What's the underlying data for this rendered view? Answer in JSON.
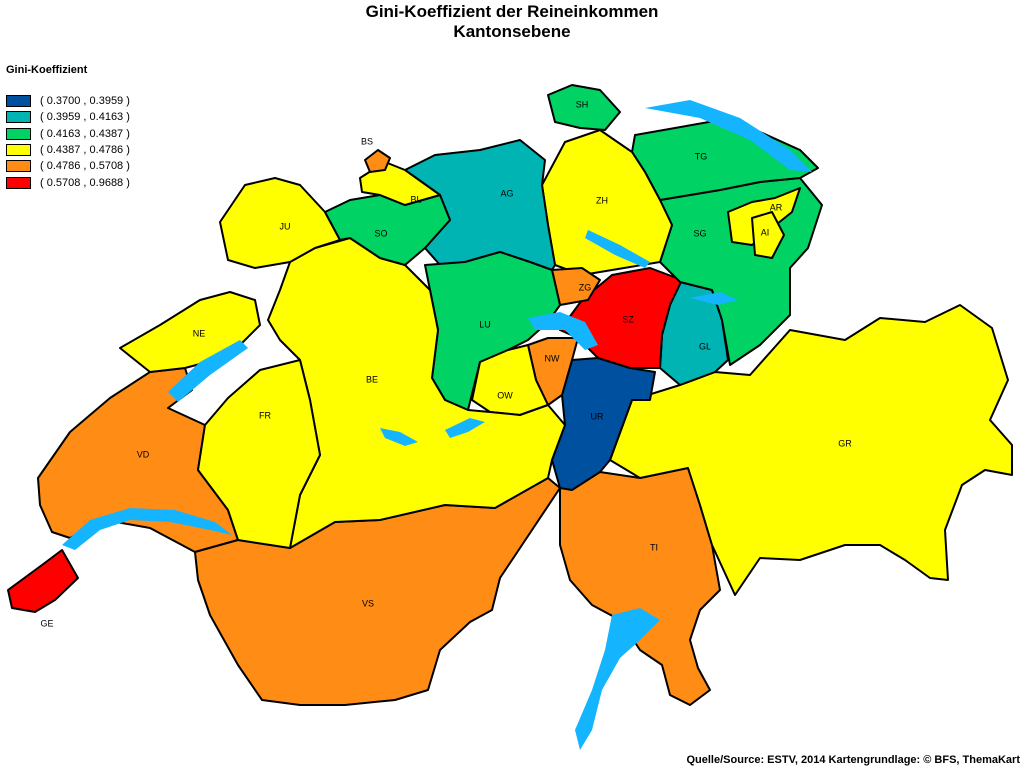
{
  "title": "Gini-Koeffizient der Reineinkommen",
  "subtitle": "Kantonsebene",
  "legend": {
    "title": "Gini-Koeffizient",
    "classes": [
      {
        "label": "( 0.3700 , 0.3959 )",
        "color": "#0050a0"
      },
      {
        "label": "( 0.3959 , 0.4163 )",
        "color": "#00b4b4"
      },
      {
        "label": "( 0.4163 , 0.4387 )",
        "color": "#00d264"
      },
      {
        "label": "( 0.4387 , 0.4786 )",
        "color": "#ffff00"
      },
      {
        "label": "( 0.4786 , 0.5708 )",
        "color": "#ff8c14"
      },
      {
        "label": "( 0.5708 , 0.9688 )",
        "color": "#ff0000"
      }
    ]
  },
  "water_color": "#14b4ff",
  "cantons": [
    {
      "code": "GE",
      "class": 5
    },
    {
      "code": "VD",
      "class": 4
    },
    {
      "code": "VS",
      "class": 4
    },
    {
      "code": "TI",
      "class": 4
    },
    {
      "code": "GR",
      "class": 3
    },
    {
      "code": "BE",
      "class": 3
    },
    {
      "code": "FR",
      "class": 3
    },
    {
      "code": "NE",
      "class": 3
    },
    {
      "code": "JU",
      "class": 3
    },
    {
      "code": "SO",
      "class": 2
    },
    {
      "code": "BL",
      "class": 3
    },
    {
      "code": "BS",
      "class": 4
    },
    {
      "code": "AG",
      "class": 1
    },
    {
      "code": "ZH",
      "class": 3
    },
    {
      "code": "SH",
      "class": 2
    },
    {
      "code": "TG",
      "class": 2
    },
    {
      "code": "SG",
      "class": 2
    },
    {
      "code": "AR",
      "class": 3
    },
    {
      "code": "AI",
      "class": 3
    },
    {
      "code": "GL",
      "class": 1
    },
    {
      "code": "SZ",
      "class": 5
    },
    {
      "code": "ZG",
      "class": 4
    },
    {
      "code": "LU",
      "class": 2
    },
    {
      "code": "OW",
      "class": 3
    },
    {
      "code": "NW",
      "class": 4
    },
    {
      "code": "UR",
      "class": 0
    }
  ],
  "source": "Quelle/Source: ESTV, 2014 Kartengrundlage: © BFS, ThemaKart"
}
